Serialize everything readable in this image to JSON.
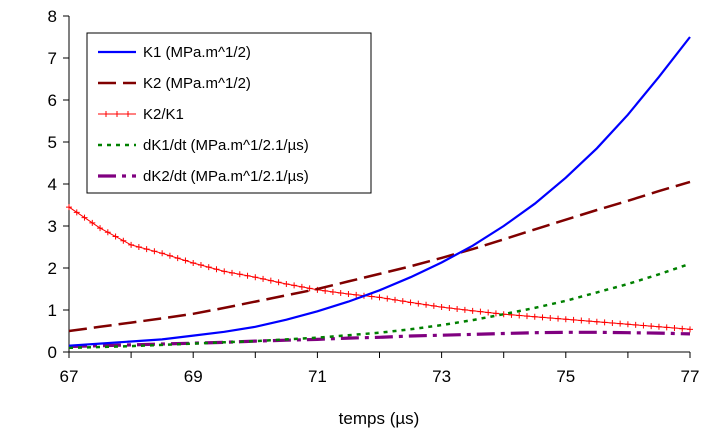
{
  "chart_data": {
    "type": "line",
    "title": "",
    "xlabel": "temps (µs)",
    "ylabel": "",
    "xlim": [
      67,
      77
    ],
    "ylim": [
      0,
      8
    ],
    "x_ticks": [
      "67",
      "69",
      "71",
      "73",
      "75",
      "77"
    ],
    "y_ticks": [
      "0",
      "1",
      "2",
      "3",
      "4",
      "5",
      "6",
      "7",
      "8"
    ],
    "grid": false,
    "legend_position": "top-left",
    "x": [
      67,
      67.5,
      68,
      68.5,
      69,
      69.5,
      70,
      70.5,
      71,
      71.5,
      72,
      72.5,
      73,
      73.5,
      74,
      74.5,
      75,
      75.5,
      76,
      76.5,
      77
    ],
    "series": [
      {
        "name": "K1 (MPa.m^1/2)",
        "color": "#0000ff",
        "style": "solid",
        "values": [
          0.15,
          0.2,
          0.25,
          0.3,
          0.39,
          0.48,
          0.6,
          0.77,
          0.97,
          1.2,
          1.47,
          1.78,
          2.13,
          2.53,
          3.0,
          3.53,
          4.15,
          4.85,
          5.65,
          6.55,
          7.5
        ]
      },
      {
        "name": "K2 (MPa.m^1/2)",
        "color": "#800000",
        "style": "longdash",
        "values": [
          0.5,
          0.6,
          0.7,
          0.8,
          0.91,
          1.05,
          1.2,
          1.35,
          1.5,
          1.68,
          1.86,
          2.04,
          2.24,
          2.45,
          2.68,
          2.92,
          3.15,
          3.38,
          3.6,
          3.83,
          4.05
        ]
      },
      {
        "name": "K2/K1",
        "color": "#ff0000",
        "style": "plus",
        "values": [
          3.45,
          2.95,
          2.55,
          2.35,
          2.12,
          1.92,
          1.78,
          1.62,
          1.48,
          1.38,
          1.3,
          1.18,
          1.07,
          0.98,
          0.9,
          0.84,
          0.78,
          0.72,
          0.66,
          0.6,
          0.54
        ]
      },
      {
        "name": "dK1/dt (MPa.m^1/2.1/µs)",
        "color": "#008000",
        "style": "dotted",
        "values": [
          0.1,
          0.12,
          0.14,
          0.17,
          0.2,
          0.23,
          0.26,
          0.3,
          0.34,
          0.4,
          0.46,
          0.54,
          0.64,
          0.76,
          0.9,
          1.05,
          1.22,
          1.42,
          1.62,
          1.85,
          2.1
        ]
      },
      {
        "name": "dK2/dt (MPa.m^1/2.1/µs)",
        "color": "#800080",
        "style": "dashdot",
        "values": [
          0.13,
          0.15,
          0.17,
          0.19,
          0.21,
          0.23,
          0.26,
          0.28,
          0.3,
          0.33,
          0.35,
          0.38,
          0.4,
          0.42,
          0.44,
          0.46,
          0.47,
          0.47,
          0.46,
          0.45,
          0.43
        ]
      }
    ]
  }
}
